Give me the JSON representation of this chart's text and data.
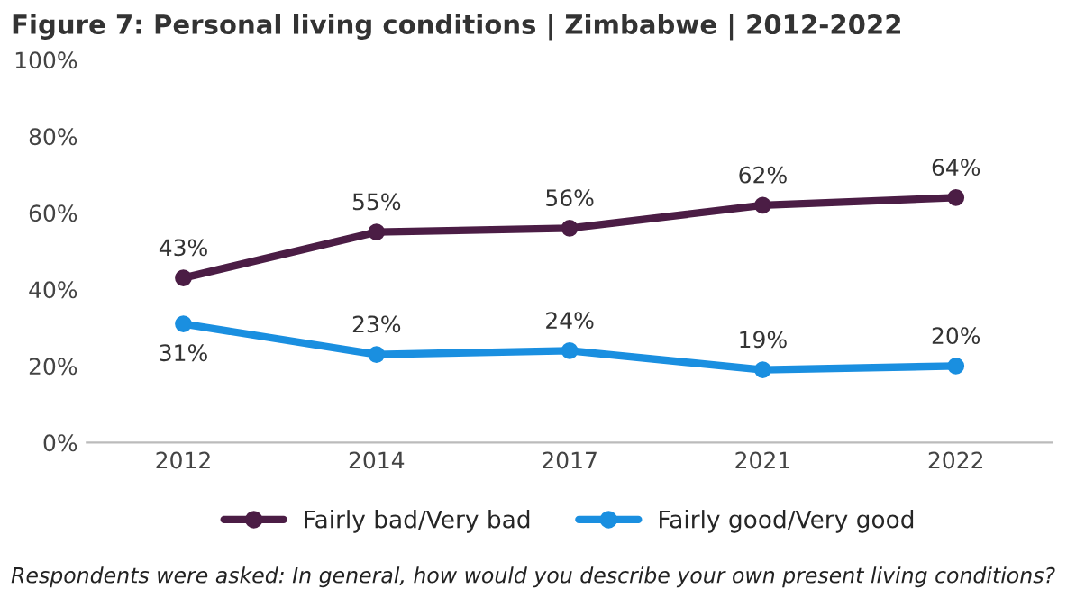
{
  "chart_data": {
    "type": "line",
    "title": "Figure 7: Personal living conditions | Zimbabwe | 2012-2022",
    "categories": [
      "2012",
      "2014",
      "2017",
      "2021",
      "2022"
    ],
    "series": [
      {
        "name": "Fairly bad/Very bad",
        "color": "#4b1d45",
        "values": [
          43,
          55,
          56,
          62,
          64
        ],
        "value_labels": [
          "43%",
          "55%",
          "56%",
          "62%",
          "64%"
        ]
      },
      {
        "name": "Fairly good/Very good",
        "color": "#1a8fe0",
        "values": [
          31,
          23,
          24,
          19,
          20
        ],
        "value_labels": [
          "31%",
          "23%",
          "24%",
          "19%",
          "20%"
        ]
      }
    ],
    "ylim": [
      0,
      100
    ],
    "yticks": [
      {
        "value": 0,
        "label": "0%"
      },
      {
        "value": 20,
        "label": "20%"
      },
      {
        "value": 40,
        "label": "40%"
      },
      {
        "value": 60,
        "label": "60%"
      },
      {
        "value": 80,
        "label": "80%"
      },
      {
        "value": 100,
        "label": "100%"
      }
    ],
    "legend": "bottom",
    "marker": "circle",
    "line_style": "solid",
    "grid": false,
    "annotations": [
      "Respondents were asked: In general, how would you describe your own present living conditions?"
    ]
  }
}
